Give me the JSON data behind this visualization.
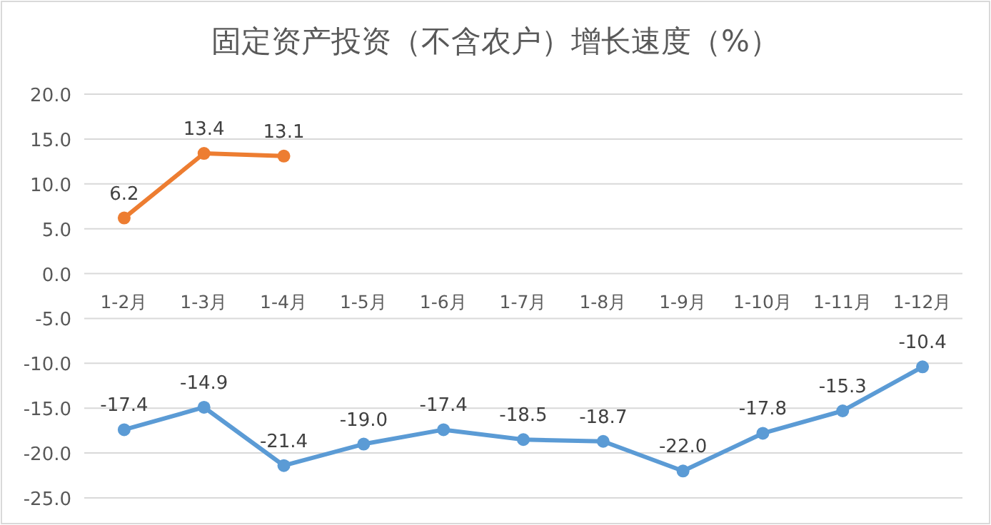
{
  "chart_data": {
    "type": "line",
    "title": "固定资产投资（不含农户）增长速度（%）",
    "categories": [
      "1-2月",
      "1-3月",
      "1-4月",
      "1-5月",
      "1-6月",
      "1-7月",
      "1-8月",
      "1-9月",
      "1-10月",
      "1-11月",
      "1-12月"
    ],
    "series": [
      {
        "color": "#ed7d31",
        "values": [
          6.2,
          13.4,
          13.1,
          null,
          null,
          null,
          null,
          null,
          null,
          null,
          null
        ],
        "value_labels": [
          "6.2",
          "13.4",
          "13.1",
          null,
          null,
          null,
          null,
          null,
          null,
          null,
          null
        ]
      },
      {
        "color": "#5b9bd5",
        "values": [
          -17.4,
          -14.9,
          -21.4,
          -19.0,
          -17.4,
          -18.5,
          -18.7,
          -22.0,
          -17.8,
          -15.3,
          -10.4
        ],
        "value_labels": [
          "-17.4",
          "-14.9",
          "-21.4",
          "-19.0",
          "-17.4",
          "-18.5",
          "-18.7",
          "-22.0",
          "-17.8",
          "-15.3",
          "-10.4"
        ]
      }
    ],
    "ylim": [
      -25,
      20
    ],
    "yticks": [
      {
        "value": 20,
        "label": "20.0"
      },
      {
        "value": 15,
        "label": "15.0"
      },
      {
        "value": 10,
        "label": "10.0"
      },
      {
        "value": 5,
        "label": "5.0"
      },
      {
        "value": 0,
        "label": "0.0"
      },
      {
        "value": -5,
        "label": "-5.0"
      },
      {
        "value": -10,
        "label": "-10.0"
      },
      {
        "value": -15,
        "label": "-15.0"
      },
      {
        "value": -20,
        "label": "-20.0"
      },
      {
        "value": -25,
        "label": "-25.0"
      }
    ],
    "grid": "y",
    "marker": "circle",
    "line_style": "solid"
  }
}
